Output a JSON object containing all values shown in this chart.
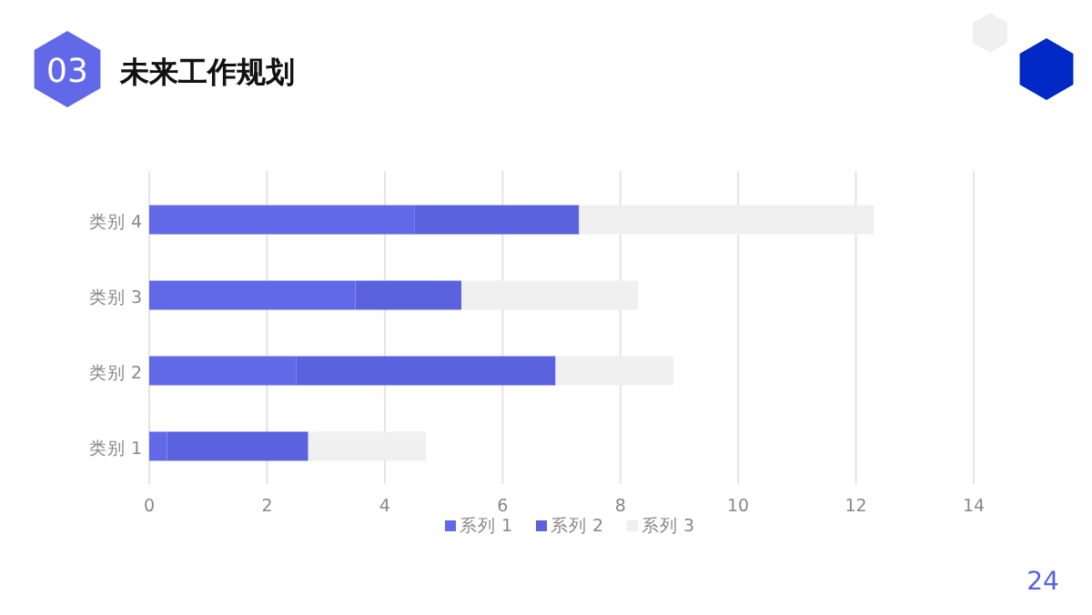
{
  "chart_data": {
    "type": "bar",
    "orientation": "horizontal",
    "stacked": true,
    "title": "未来工作规划",
    "annotations": [
      "03",
      "24"
    ],
    "categories": [
      "类别 4",
      "类别 3",
      "类别 2",
      "类别 1"
    ],
    "series": [
      {
        "name": "系列 1",
        "color": "#6169e8",
        "values": [
          4.5,
          3.5,
          2.5,
          0.3
        ]
      },
      {
        "name": "系列 2",
        "color": "#5a62de",
        "values": [
          2.8,
          1.8,
          4.4,
          2.4
        ]
      },
      {
        "name": "系列 3",
        "color": "#f0f0f0",
        "values": [
          5,
          3,
          2,
          2
        ]
      }
    ],
    "xlim": [
      0,
      14
    ],
    "xticks": [
      0,
      2,
      4,
      6,
      8,
      10,
      12,
      14
    ],
    "grid": "x",
    "legend": "bottom"
  }
}
